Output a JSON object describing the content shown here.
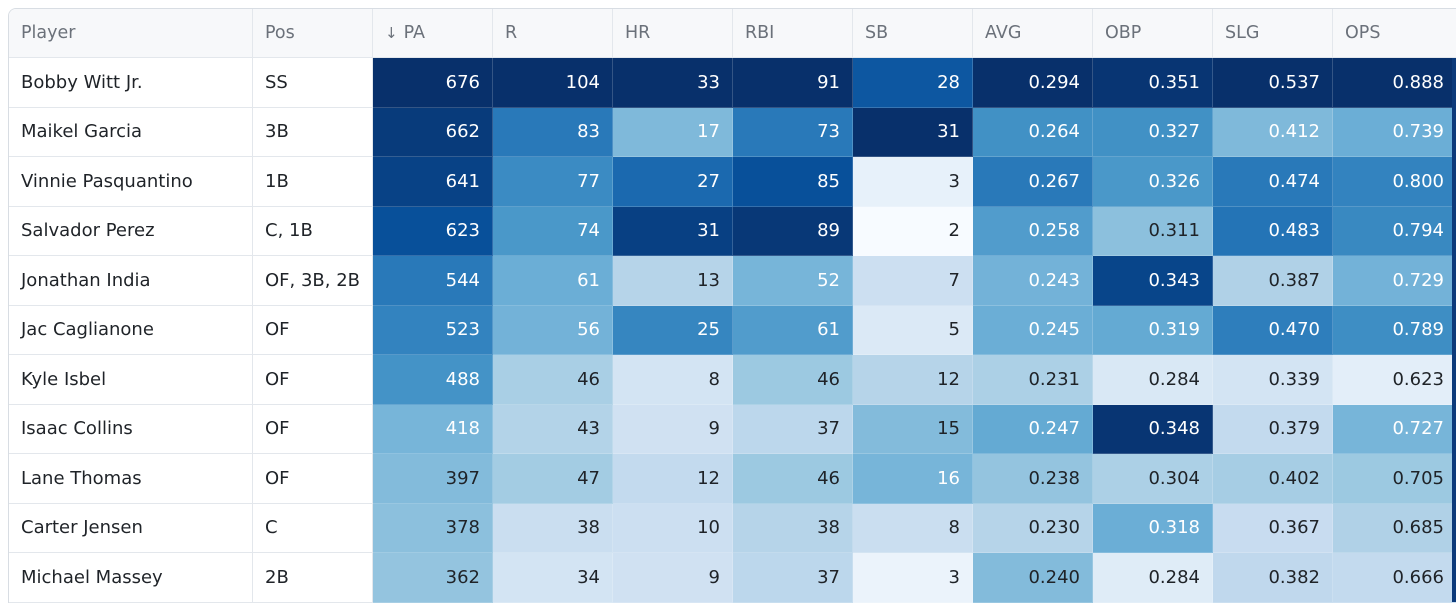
{
  "columns": [
    {
      "label": "Player"
    },
    {
      "label": "Pos"
    },
    {
      "label": "PA",
      "sorted": "desc",
      "sort_glyph": "↓"
    },
    {
      "label": "R"
    },
    {
      "label": "HR"
    },
    {
      "label": "RBI"
    },
    {
      "label": "SB"
    },
    {
      "label": "AVG"
    },
    {
      "label": "OBP"
    },
    {
      "label": "SLG"
    },
    {
      "label": "OPS"
    }
  ],
  "heat_colors": {
    "scale": [
      "#f7fbff",
      "#deebf7",
      "#c6dbef",
      "#9ecae1",
      "#6baed6",
      "#4292c6",
      "#2171b5",
      "#08519c",
      "#08306b"
    ],
    "light_text": "#ffffff",
    "dark_text": "#1f2328"
  },
  "rows": [
    {
      "player": "Bobby Witt Jr.",
      "pos": "SS",
      "PA": "676",
      "R": "104",
      "HR": "33",
      "RBI": "91",
      "SB": "28",
      "AVG": "0.294",
      "OBP": "0.351",
      "SLG": "0.537",
      "OPS": "0.888",
      "shade": {
        "PA": 1.0,
        "R": 1.0,
        "HR": 1.0,
        "RBI": 1.0,
        "SB": 0.85,
        "AVG": 1.0,
        "OBP": 0.98,
        "SLG": 1.0,
        "OPS": 1.0
      }
    },
    {
      "player": "Maikel Garcia",
      "pos": "3B",
      "PA": "662",
      "R": "83",
      "HR": "17",
      "RBI": "73",
      "SB": "31",
      "AVG": "0.264",
      "OBP": "0.327",
      "SLG": "0.412",
      "OPS": "0.739",
      "shade": {
        "PA": 0.96,
        "R": 0.72,
        "HR": 0.45,
        "RBI": 0.72,
        "SB": 1.0,
        "AVG": 0.63,
        "OBP": 0.63,
        "SLG": 0.45,
        "OPS": 0.5
      }
    },
    {
      "player": "Vinnie Pasquantino",
      "pos": "1B",
      "PA": "641",
      "R": "77",
      "HR": "27",
      "RBI": "85",
      "SB": "3",
      "AVG": "0.267",
      "OBP": "0.326",
      "SLG": "0.474",
      "OPS": "0.800",
      "shade": {
        "PA": 0.93,
        "R": 0.65,
        "HR": 0.78,
        "RBI": 0.88,
        "SB": 0.08,
        "AVG": 0.72,
        "OBP": 0.6,
        "SLG": 0.72,
        "OPS": 0.68
      }
    },
    {
      "player": "Salvador Perez",
      "pos": "C, 1B",
      "PA": "623",
      "R": "74",
      "HR": "31",
      "RBI": "89",
      "SB": "2",
      "AVG": "0.258",
      "OBP": "0.311",
      "SLG": "0.483",
      "OPS": "0.794",
      "shade": {
        "PA": 0.88,
        "R": 0.6,
        "HR": 0.94,
        "RBI": 0.97,
        "SB": 0.0,
        "AVG": 0.58,
        "OBP": 0.42,
        "SLG": 0.74,
        "OPS": 0.66
      }
    },
    {
      "player": "Jonathan India",
      "pos": "OF, 3B, 2B",
      "PA": "544",
      "R": "61",
      "HR": "13",
      "RBI": "52",
      "SB": "7",
      "AVG": "0.243",
      "OBP": "0.343",
      "SLG": "0.387",
      "OPS": "0.729",
      "shade": {
        "PA": 0.72,
        "R": 0.5,
        "HR": 0.3,
        "RBI": 0.47,
        "SB": 0.22,
        "AVG": 0.48,
        "OBP": 0.92,
        "SLG": 0.32,
        "OPS": 0.48
      }
    },
    {
      "player": "Jac Caglianone",
      "pos": "OF",
      "PA": "523",
      "R": "56",
      "HR": "25",
      "RBI": "61",
      "SB": "5",
      "AVG": "0.245",
      "OBP": "0.319",
      "SLG": "0.470",
      "OPS": "0.789",
      "shade": {
        "PA": 0.68,
        "R": 0.48,
        "HR": 0.67,
        "RBI": 0.58,
        "SB": 0.14,
        "AVG": 0.5,
        "OBP": 0.52,
        "SLG": 0.7,
        "OPS": 0.64
      }
    },
    {
      "player": "Kyle Isbel",
      "pos": "OF",
      "PA": "488",
      "R": "46",
      "HR": "8",
      "RBI": "46",
      "SB": "12",
      "AVG": "0.231",
      "OBP": "0.284",
      "SLG": "0.339",
      "OPS": "0.623",
      "shade": {
        "PA": 0.62,
        "R": 0.34,
        "HR": 0.18,
        "RBI": 0.38,
        "SB": 0.3,
        "AVG": 0.33,
        "OBP": 0.15,
        "SLG": 0.18,
        "OPS": 0.1
      }
    },
    {
      "player": "Isaac Collins",
      "pos": "OF",
      "PA": "418",
      "R": "43",
      "HR": "9",
      "RBI": "37",
      "SB": "15",
      "AVG": "0.247",
      "OBP": "0.348",
      "SLG": "0.379",
      "OPS": "0.727",
      "shade": {
        "PA": 0.47,
        "R": 0.31,
        "HR": 0.2,
        "RBI": 0.28,
        "SB": 0.44,
        "AVG": 0.52,
        "OBP": 0.98,
        "SLG": 0.26,
        "OPS": 0.47
      }
    },
    {
      "player": "Lane Thomas",
      "pos": "OF",
      "PA": "397",
      "R": "47",
      "HR": "12",
      "RBI": "46",
      "SB": "16",
      "AVG": "0.238",
      "OBP": "0.304",
      "SLG": "0.402",
      "OPS": "0.705",
      "shade": {
        "PA": 0.44,
        "R": 0.36,
        "HR": 0.26,
        "RBI": 0.38,
        "SB": 0.47,
        "AVG": 0.4,
        "OBP": 0.33,
        "SLG": 0.35,
        "OPS": 0.38
      }
    },
    {
      "player": "Carter Jensen",
      "pos": "C",
      "PA": "378",
      "R": "38",
      "HR": "10",
      "RBI": "38",
      "SB": "8",
      "AVG": "0.230",
      "OBP": "0.318",
      "SLG": "0.367",
      "OPS": "0.685",
      "shade": {
        "PA": 0.42,
        "R": 0.23,
        "HR": 0.22,
        "RBI": 0.3,
        "SB": 0.23,
        "AVG": 0.3,
        "OBP": 0.5,
        "SLG": 0.24,
        "OPS": 0.32
      }
    },
    {
      "player": "Michael Massey",
      "pos": "2B",
      "PA": "362",
      "R": "34",
      "HR": "9",
      "RBI": "37",
      "SB": "3",
      "AVG": "0.240",
      "OBP": "0.284",
      "SLG": "0.382",
      "OPS": "0.666",
      "shade": {
        "PA": 0.4,
        "R": 0.18,
        "HR": 0.2,
        "RBI": 0.28,
        "SB": 0.06,
        "AVG": 0.44,
        "OBP": 0.12,
        "SLG": 0.27,
        "OPS": 0.26
      }
    }
  ]
}
